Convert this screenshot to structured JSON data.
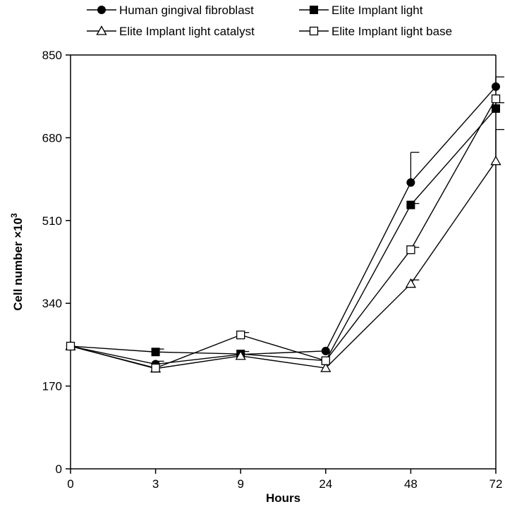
{
  "chart_data": {
    "type": "line",
    "categories": [
      "0",
      "3",
      "9",
      "24",
      "48",
      "72"
    ],
    "xlabel": "Hours",
    "ylabel": {
      "main": "Cell number ×10",
      "sup": "3"
    },
    "ylim": [
      0,
      850
    ],
    "yticks": [
      0,
      170,
      340,
      510,
      680,
      850
    ],
    "grid": false,
    "legend_position": "top",
    "series": [
      {
        "name": "Human gingival fibroblast",
        "marker": "circle-filled",
        "values": [
          252,
          215,
          235,
          242,
          588,
          785
        ],
        "errors": [
          0,
          6,
          0,
          0,
          62,
          20
        ]
      },
      {
        "name": "Elite Implant light",
        "marker": "square-filled",
        "values": [
          252,
          240,
          236,
          222,
          542,
          740
        ],
        "errors": [
          0,
          6,
          5,
          0,
          3,
          12
        ]
      },
      {
        "name": "Elite Implant light catalyst",
        "marker": "triangle-open",
        "values": [
          252,
          206,
          232,
          207,
          380,
          632
        ],
        "errors": [
          0,
          0,
          0,
          0,
          8,
          65
        ]
      },
      {
        "name": "Elite Implant light base",
        "marker": "square-open",
        "values": [
          252,
          207,
          275,
          222,
          450,
          760
        ],
        "errors": [
          0,
          0,
          5,
          0,
          5,
          0
        ]
      }
    ]
  }
}
